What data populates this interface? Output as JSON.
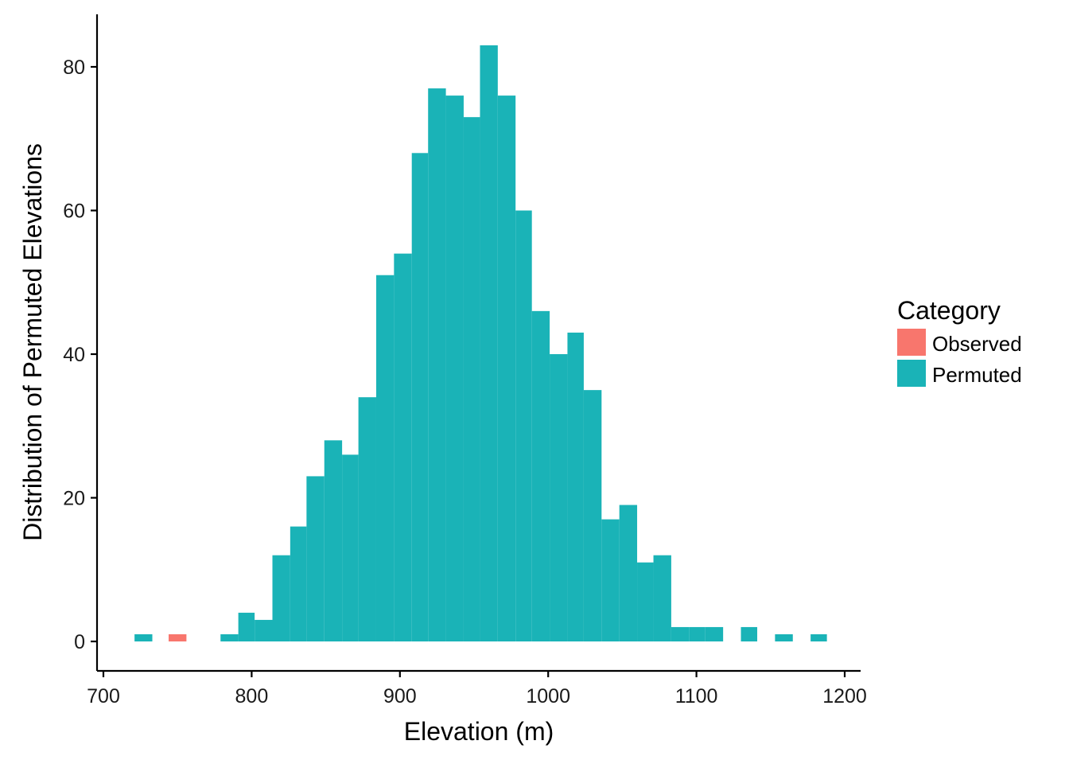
{
  "chart_data": {
    "type": "bar",
    "subtype": "histogram",
    "xlabel": "Elevation (m)",
    "ylabel": "Distribution of Permuted Elevations",
    "xlim": [
      697,
      1210
    ],
    "ylim": [
      -4,
      87
    ],
    "x_ticks": [
      700,
      800,
      900,
      1000,
      1100,
      1200
    ],
    "y_ticks": [
      0,
      20,
      40,
      60,
      80
    ],
    "grid": false,
    "legend": {
      "title": "Category",
      "placement": "right",
      "entries": [
        {
          "name": "Observed",
          "color": "#F8766D"
        },
        {
          "name": "Permuted",
          "color": "#1AB3B7"
        }
      ]
    },
    "series": [
      {
        "name": "Observed",
        "color": "#F8766D",
        "bins": [
          {
            "x0": 744,
            "x1": 756,
            "count": 1
          }
        ]
      },
      {
        "name": "Permuted",
        "color": "#1AB3B7",
        "bins": [
          {
            "x0": 721,
            "x1": 733,
            "count": 1
          },
          {
            "x0": 779,
            "x1": 791,
            "count": 1
          },
          {
            "x0": 791,
            "x1": 802,
            "count": 4
          },
          {
            "x0": 802,
            "x1": 814,
            "count": 3
          },
          {
            "x0": 814,
            "x1": 826,
            "count": 12
          },
          {
            "x0": 826,
            "x1": 837,
            "count": 16
          },
          {
            "x0": 837,
            "x1": 849,
            "count": 23
          },
          {
            "x0": 849,
            "x1": 861,
            "count": 28
          },
          {
            "x0": 861,
            "x1": 872,
            "count": 26
          },
          {
            "x0": 872,
            "x1": 884,
            "count": 34
          },
          {
            "x0": 884,
            "x1": 896,
            "count": 51
          },
          {
            "x0": 896,
            "x1": 908,
            "count": 54
          },
          {
            "x0": 908,
            "x1": 919,
            "count": 68
          },
          {
            "x0": 919,
            "x1": 931,
            "count": 77
          },
          {
            "x0": 931,
            "x1": 943,
            "count": 76
          },
          {
            "x0": 943,
            "x1": 954,
            "count": 73
          },
          {
            "x0": 954,
            "x1": 966,
            "count": 83
          },
          {
            "x0": 966,
            "x1": 978,
            "count": 76
          },
          {
            "x0": 978,
            "x1": 989,
            "count": 60
          },
          {
            "x0": 989,
            "x1": 1001,
            "count": 46
          },
          {
            "x0": 1001,
            "x1": 1013,
            "count": 40
          },
          {
            "x0": 1013,
            "x1": 1024,
            "count": 43
          },
          {
            "x0": 1024,
            "x1": 1036,
            "count": 35
          },
          {
            "x0": 1036,
            "x1": 1048,
            "count": 17
          },
          {
            "x0": 1048,
            "x1": 1060,
            "count": 19
          },
          {
            "x0": 1060,
            "x1": 1071,
            "count": 11
          },
          {
            "x0": 1071,
            "x1": 1083,
            "count": 12
          },
          {
            "x0": 1083,
            "x1": 1095,
            "count": 2
          },
          {
            "x0": 1095,
            "x1": 1106,
            "count": 2
          },
          {
            "x0": 1106,
            "x1": 1118,
            "count": 2
          },
          {
            "x0": 1130,
            "x1": 1141,
            "count": 2
          },
          {
            "x0": 1153,
            "x1": 1165,
            "count": 1
          },
          {
            "x0": 1177,
            "x1": 1188,
            "count": 1
          }
        ]
      }
    ]
  }
}
